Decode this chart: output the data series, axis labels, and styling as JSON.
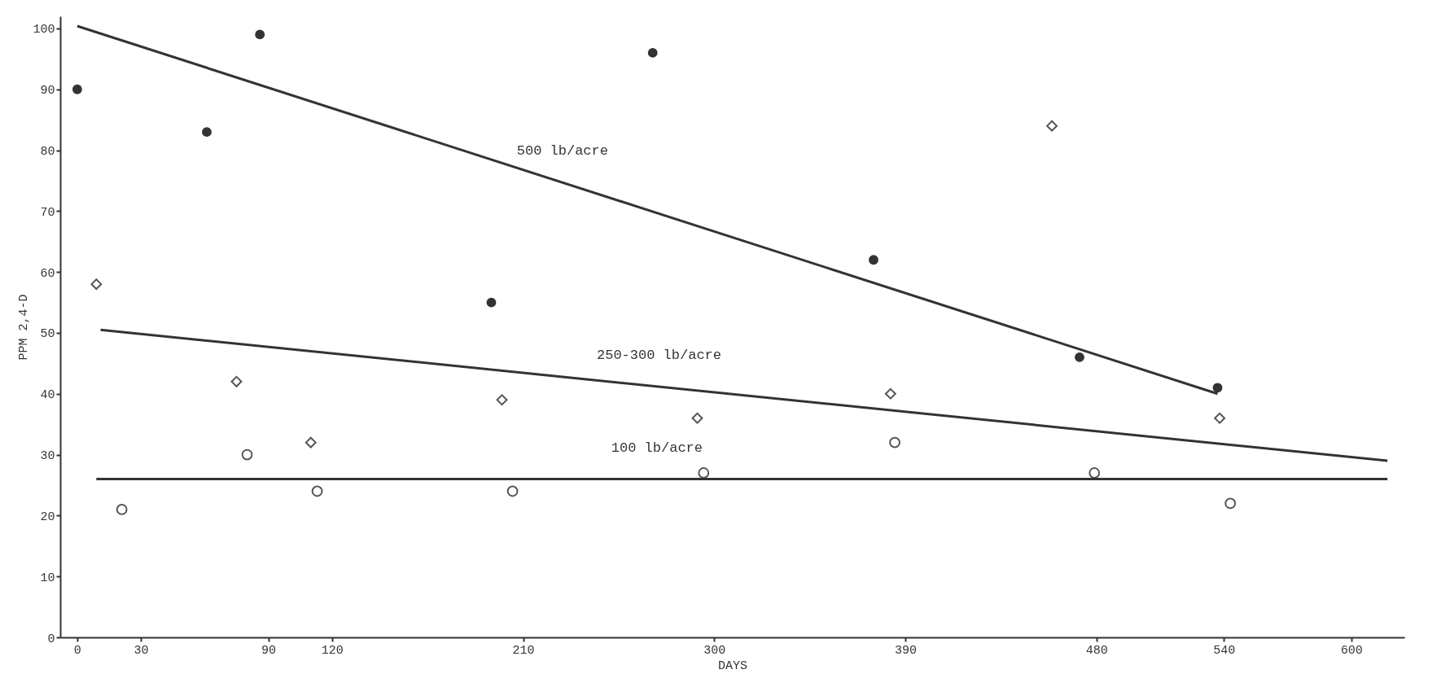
{
  "chart_data": {
    "type": "scatter",
    "xlabel": "DAYS",
    "ylabel": "PPM 2,4-D",
    "xlim": [
      -8,
      625
    ],
    "ylim": [
      0,
      102
    ],
    "xticks": [
      0,
      30,
      90,
      120,
      210,
      300,
      390,
      480,
      540,
      600
    ],
    "yticks": [
      0,
      10,
      20,
      30,
      40,
      50,
      60,
      70,
      80,
      90,
      100
    ],
    "grid": false,
    "series": [
      {
        "marker": "circle",
        "color": "#333333",
        "x": [
          0,
          61,
          86,
          195,
          271,
          375,
          472,
          537
        ],
        "values": [
          90,
          83,
          99,
          55,
          96,
          62,
          46,
          41
        ]
      },
      {
        "marker": "diamond",
        "color": "#555555",
        "x": [
          9,
          75,
          110,
          200,
          292,
          383,
          459,
          538
        ],
        "values": [
          58,
          42,
          32,
          39,
          36,
          40,
          84,
          36
        ]
      },
      {
        "marker": "circle",
        "color": "#555555",
        "x": [
          21,
          80,
          113,
          205,
          295,
          385,
          479,
          543
        ],
        "values": [
          21,
          30,
          24,
          24,
          27,
          32,
          27,
          22
        ]
      },
      {
        "type": "line",
        "color": "#333333",
        "x": [
          0,
          537
        ],
        "values": [
          100.4,
          40
        ]
      },
      {
        "type": "line",
        "color": "#333333",
        "x": [
          11,
          617
        ],
        "values": [
          50.5,
          29
        ]
      },
      {
        "type": "line",
        "color": "#333333",
        "x": [
          9,
          617
        ],
        "values": [
          26,
          26
        ]
      }
    ],
    "annotations": [
      "500 lb/acre",
      "250-300 lb/acre",
      "100 lb/acre"
    ]
  }
}
